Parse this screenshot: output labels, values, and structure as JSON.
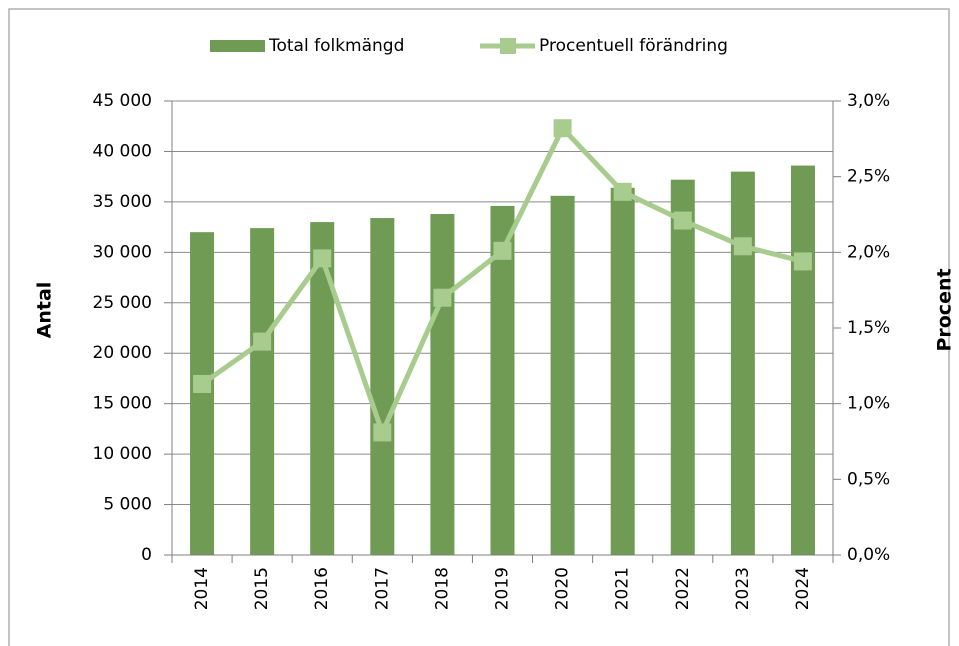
{
  "chart_data": {
    "type": "bar",
    "categories": [
      "2014",
      "2015",
      "2016",
      "2017",
      "2018",
      "2019",
      "2020",
      "2021",
      "2022",
      "2023",
      "2024"
    ],
    "series": [
      {
        "name": "Total folkmängd",
        "type": "bar",
        "color": "#6f9b55",
        "values": [
          32000,
          32400,
          33000,
          33400,
          33800,
          34600,
          35600,
          36400,
          37200,
          38000,
          38600
        ]
      },
      {
        "name": "Procentuell förändring",
        "type": "line",
        "axis": "y2",
        "color": "#a8cb8e",
        "values": [
          1.13,
          1.41,
          1.96,
          0.81,
          1.7,
          2.01,
          2.82,
          2.4,
          2.21,
          2.04,
          1.94
        ]
      }
    ],
    "ylabel": "Antal",
    "y2label": "Procent",
    "ylim": [
      0,
      45000
    ],
    "yticks": [
      0,
      {
        "value": 5000,
        "label": "5 000"
      },
      {
        "value": 10000,
        "label": "10 000"
      },
      {
        "value": 15000,
        "label": "15 000"
      },
      {
        "value": 20000,
        "label": "20 000"
      },
      {
        "value": 25000,
        "label": "25 000"
      },
      {
        "value": 30000,
        "label": "30 000"
      },
      {
        "value": 35000,
        "label": "35 000"
      },
      {
        "value": 40000,
        "label": "40 000"
      },
      {
        "value": 45000,
        "label": "45 000"
      }
    ],
    "y2lim": [
      0,
      3
    ],
    "y2ticks": [
      {
        "value": 0,
        "label": "0,0%"
      },
      {
        "value": 0.5,
        "label": "0,5%"
      },
      {
        "value": 1,
        "label": "1,0%"
      },
      {
        "value": 1.5,
        "label": "1,5%"
      },
      {
        "value": 2,
        "label": "2,0%"
      },
      {
        "value": 2.5,
        "label": "2,5%"
      },
      {
        "value": 3,
        "label": "3,0%"
      }
    ],
    "grid": true,
    "legend": "top"
  }
}
